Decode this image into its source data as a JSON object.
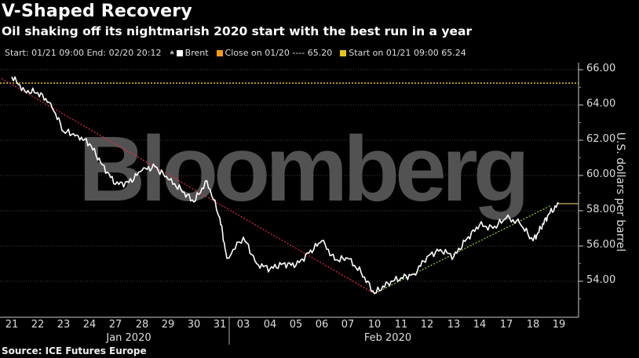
{
  "header": {
    "title": "V-Shaped Recovery",
    "subtitle": "Oil shaking off its nightmarish 2020 start with the best run in a year"
  },
  "legend": {
    "range": "Start: 01/21 09:00 End: 02/20 20:12",
    "items": [
      {
        "label": "Brent",
        "color": "#ffffff"
      },
      {
        "label": "Close on 01/20 ---- 65.20",
        "color": "#f39c12"
      },
      {
        "label": "Start on 01/21 09:00 65.24",
        "color": "#e6c619"
      }
    ]
  },
  "watermark": "Bloomberg",
  "source": "Source: ICE Futures Europe",
  "colors": {
    "background": "#000000",
    "line": "#ffffff",
    "downtrend": "#e0304a",
    "uptrend": "#9ad23a",
    "start_line": "#e6c619",
    "last_price_line": "#c8b46a",
    "grid": "#555555"
  },
  "chart_data": {
    "type": "line",
    "title": "V-Shaped Recovery",
    "subtitle": "Oil shaking off its nightmarish 2020 start with the best run in a year",
    "xlabel": "",
    "ylabel": "U.S. dollars per barrel",
    "ylim": [
      52.0,
      66.2
    ],
    "yticks": [
      "54.00",
      "56.00",
      "58.00",
      "60.00",
      "62.00",
      "64.00",
      "66.00"
    ],
    "grid": true,
    "legend_position": "top-left",
    "x_tick_labels": [
      "21",
      "22",
      "23",
      "24",
      "27",
      "28",
      "29",
      "30",
      "31",
      "03",
      "04",
      "05",
      "06",
      "07",
      "10",
      "11",
      "12",
      "13",
      "14",
      "17",
      "18",
      "19"
    ],
    "month_labels": [
      {
        "label": "Jan 2020",
        "center_tick": "27/28"
      },
      {
        "label": "Feb 2020",
        "center_tick": "10/11"
      }
    ],
    "reference_lines": [
      {
        "name": "Start on 01/21 09:00",
        "value": 65.24,
        "style": "dotted",
        "color": "#e6c619"
      },
      {
        "name": "Close on 01/20",
        "value": 65.2,
        "style": "dashed",
        "color": "#f39c12"
      }
    ],
    "trendlines": [
      {
        "name": "downtrend",
        "from": {
          "x": "21",
          "y": 65.5
        },
        "to": {
          "x": "10",
          "y": 53.3
        },
        "color": "#e0304a"
      },
      {
        "name": "uptrend",
        "from": {
          "x": "10",
          "y": 53.3
        },
        "to": {
          "x": "19",
          "y": 58.3
        },
        "color": "#9ad23a"
      }
    ],
    "series": [
      {
        "name": "Brent",
        "x": [
          "21",
          "21.5",
          "22",
          "22.5",
          "23",
          "23.5",
          "24",
          "24.5",
          "27",
          "27.5",
          "28",
          "28.5",
          "29",
          "29.5",
          "30",
          "30.5",
          "31",
          "31.3",
          "03",
          "03.5",
          "04",
          "04.5",
          "05",
          "05.5",
          "06",
          "06.5",
          "07",
          "07.5",
          "10",
          "10.5",
          "11",
          "11.5",
          "12",
          "12.5",
          "13",
          "13.5",
          "14",
          "14.5",
          "17",
          "17.5",
          "18",
          "18.3",
          "18.6",
          "19"
        ],
        "values": [
          65.6,
          64.8,
          64.7,
          64.1,
          62.5,
          62.3,
          61.8,
          60.6,
          59.5,
          59.6,
          60.3,
          60.5,
          59.8,
          59.2,
          58.5,
          59.7,
          57.6,
          55.3,
          56.5,
          55.0,
          54.7,
          55.0,
          54.9,
          55.6,
          56.3,
          55.2,
          55.3,
          54.5,
          53.3,
          53.9,
          54.2,
          54.4,
          55.4,
          55.8,
          55.4,
          56.4,
          57.2,
          57.0,
          57.6,
          57.3,
          56.3,
          57.0,
          57.8,
          58.4
        ]
      }
    ]
  }
}
